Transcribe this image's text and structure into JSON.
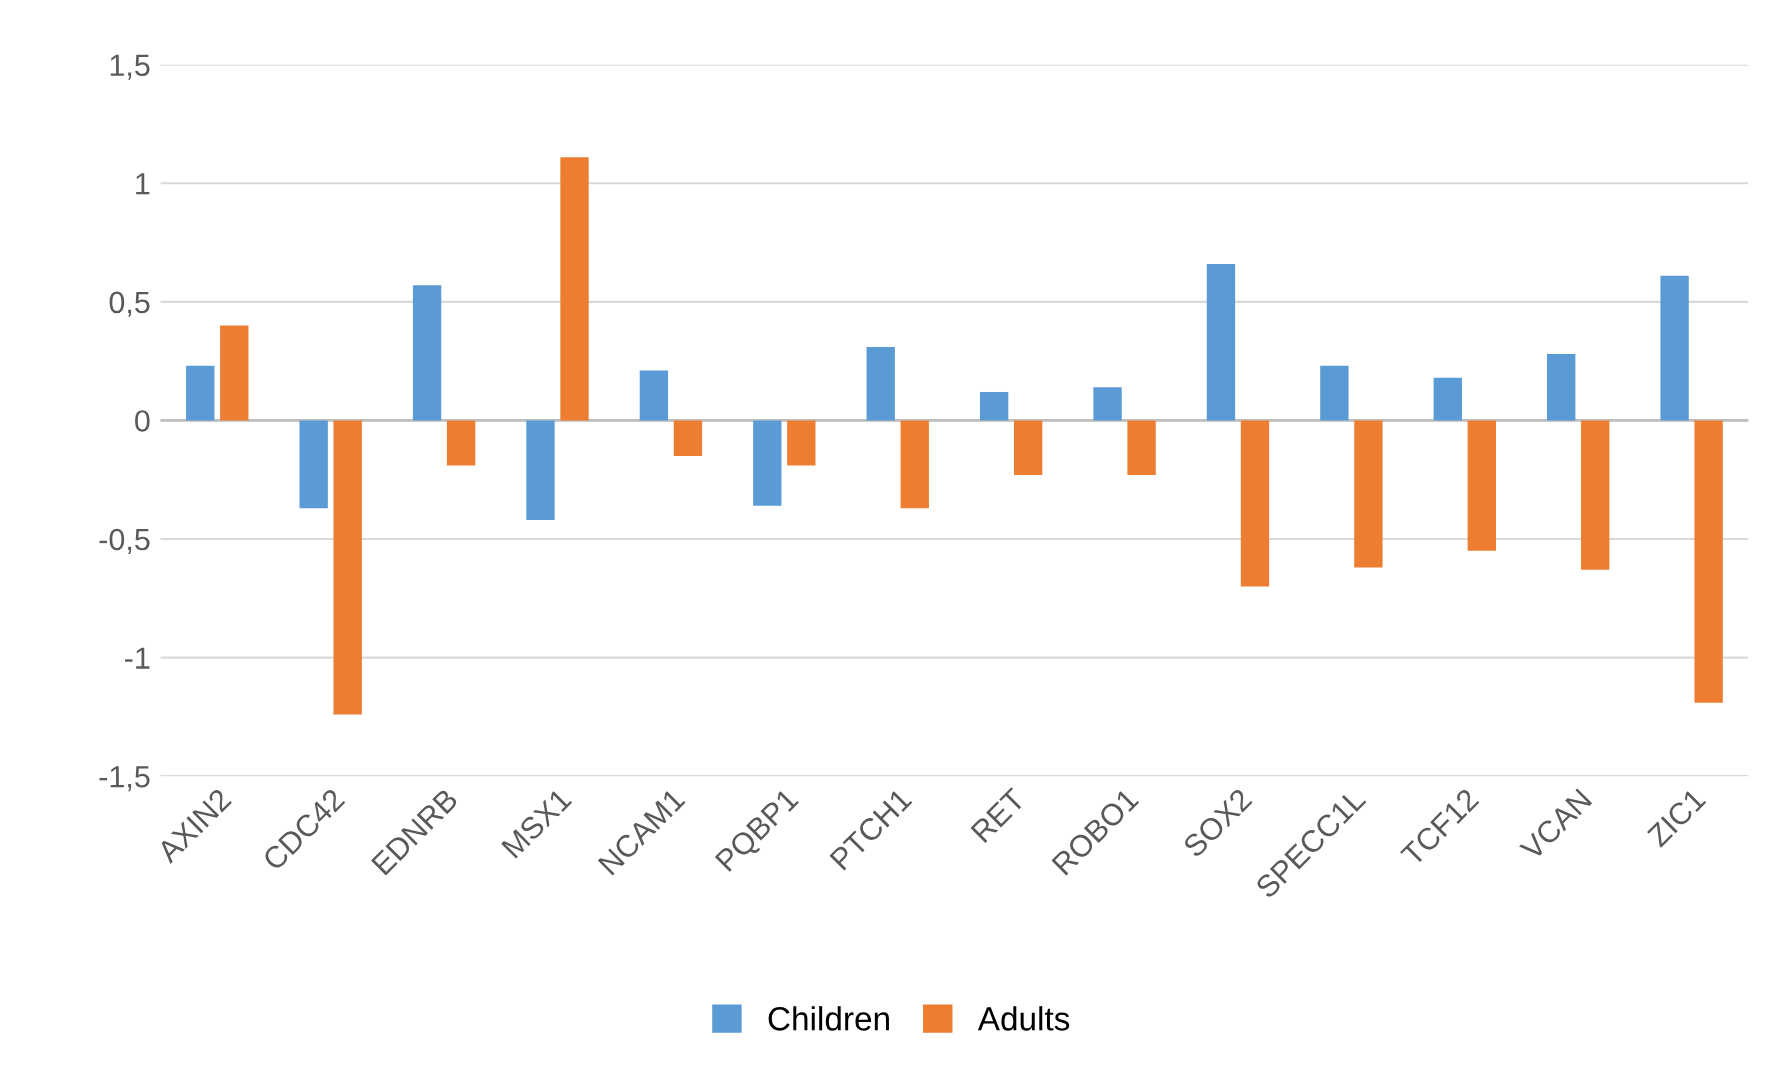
{
  "chart_data": {
    "type": "bar",
    "categories": [
      "AXIN2",
      "CDC42",
      "EDNRB",
      "MSX1",
      "NCAM1",
      "PQBP1",
      "PTCH1",
      "RET",
      "ROBO1",
      "SOX2",
      "SPECC1L",
      "TCF12",
      "VCAN",
      "ZIC1"
    ],
    "series": [
      {
        "name": "Children",
        "color": "#5b9bd5",
        "values": [
          0.23,
          -0.37,
          0.57,
          -0.42,
          0.21,
          -0.36,
          0.31,
          0.12,
          0.14,
          0.66,
          0.23,
          0.18,
          0.28,
          0.61
        ]
      },
      {
        "name": "Adults",
        "color": "#ed7d31",
        "values": [
          0.4,
          -1.24,
          -0.19,
          1.11,
          -0.15,
          -0.19,
          -0.37,
          -0.23,
          -0.23,
          -0.7,
          -0.62,
          -0.55,
          -0.63,
          -1.19
        ]
      }
    ],
    "ylim": [
      -1.5,
      1.5
    ],
    "yticks": [
      {
        "value": -1.5,
        "label": "-1,5"
      },
      -1,
      {
        "value": -0.5,
        "label": "-0,5"
      },
      0,
      {
        "value": 0.5,
        "label": "0,5"
      },
      1,
      {
        "value": 1.5,
        "label": "1,5"
      }
    ],
    "grid": "y",
    "legend": "bottom"
  }
}
